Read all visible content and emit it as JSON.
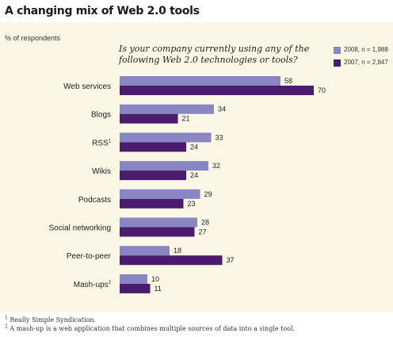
{
  "title": "A changing mix of Web 2.0 tools",
  "unit_label": "% of respondents",
  "question": "Is your company currently using any of the following Web 2.0 technologies or tools?",
  "colors": {
    "series_2008": "#8a86c4",
    "series_2007": "#4b1b6e",
    "panel": "#faf7e6"
  },
  "legend": [
    {
      "label": "2008, n = 1,988",
      "color": "#8a86c4"
    },
    {
      "label": "2007, n = 2,847",
      "color": "#4b1b6e"
    }
  ],
  "chart_data": {
    "type": "bar",
    "orientation": "horizontal",
    "title": "A changing mix of Web 2.0 tools",
    "categories": [
      {
        "label": "Web services",
        "note": ""
      },
      {
        "label": "Blogs",
        "note": ""
      },
      {
        "label": "RSS",
        "note": "1"
      },
      {
        "label": "Wikis",
        "note": ""
      },
      {
        "label": "Podcasts",
        "note": ""
      },
      {
        "label": "Social networking",
        "note": ""
      },
      {
        "label": "Peer-to-peer",
        "note": ""
      },
      {
        "label": "Mash-ups",
        "note": "2"
      }
    ],
    "series": [
      {
        "name": "2008, n = 1,988",
        "values": [
          58,
          34,
          33,
          32,
          29,
          28,
          18,
          10
        ]
      },
      {
        "name": "2007, n = 2,847",
        "values": [
          70,
          21,
          24,
          24,
          23,
          27,
          37,
          11
        ]
      }
    ],
    "xlim": [
      0,
      100
    ],
    "data_labels": true,
    "grid": false,
    "legend_position": "top-right"
  },
  "footnotes": [
    {
      "mark": "1",
      "text": "Really Simple Syndication."
    },
    {
      "mark": "2",
      "text": "A mash-up is a web application that combines multiple sources of data into a single tool."
    }
  ]
}
